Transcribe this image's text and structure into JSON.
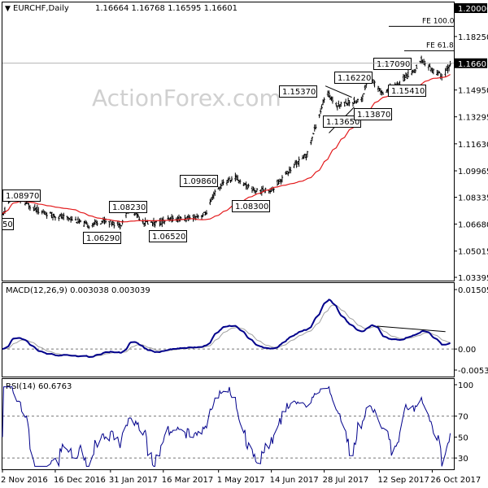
{
  "chart_data": [
    {
      "type": "candlestick",
      "title": "EURCHF,Daily",
      "ohlc_header": "1.16664 1.16768 1.16595 1.16601",
      "y_ticks": [
        "1.20000",
        "1.18250",
        "1.16601",
        "1.14950",
        "1.13295",
        "1.11630",
        "1.09965",
        "1.08335",
        "1.06680",
        "1.05015",
        "1.03395"
      ],
      "ylim": [
        1.03395,
        1.2
      ],
      "current_price": "1.16601",
      "x_ticks": [
        "2 Nov 2016",
        "16 Dec 2016",
        "31 Jan 2017",
        "16 Mar 2017",
        "1 May 2017",
        "14 Jun 2017",
        "28 Jul 2017",
        "12 Sep 2017",
        "26 Oct 2017"
      ],
      "annotations": [
        {
          "text": "1.08970",
          "x": "2016-11-10",
          "y": 1.0897
        },
        {
          "text": "1.08230",
          "x": "2017-02-16",
          "y": 1.0823
        },
        {
          "text": "1.06290",
          "x": "2017-01-12",
          "y": 1.0629
        },
        {
          "text": "1.06520",
          "x": "2017-03-10",
          "y": 1.0652
        },
        {
          "text": "1.09860",
          "x": "2017-05-05",
          "y": 1.0986
        },
        {
          "text": "1.08300",
          "x": "2017-06-02",
          "y": 1.083
        },
        {
          "text": "1.15370",
          "x": "2017-07-30",
          "y": 1.1537
        },
        {
          "text": "1.13650",
          "x": "2017-08-08",
          "y": 1.1365
        },
        {
          "text": "1.13870",
          "x": "2017-08-28",
          "y": 1.1387
        },
        {
          "text": "1.16220",
          "x": "2017-09-03",
          "y": 1.1622
        },
        {
          "text": "1.15410",
          "x": "2017-10-03",
          "y": 1.1541
        },
        {
          "text": "1.17090",
          "x": "2017-10-17",
          "y": 1.1709
        }
      ],
      "fib_levels": [
        {
          "text": "FE 100.0",
          "y": 1.1888
        },
        {
          "text": "FE 61.8",
          "y": 1.1737
        }
      ],
      "left_cut_label": "50",
      "watermark": "ActionForex.com",
      "moving_average_color": "#e31a1c",
      "price_color": "#000000"
    },
    {
      "type": "line",
      "title": "MACD(12,26,9) 0.003038 0.003039",
      "y_ticks": [
        "0.015052",
        "0.00",
        "-0.005321"
      ],
      "ylim": [
        -0.005321,
        0.015052
      ],
      "series_colors": {
        "macd": "#00008b",
        "signal": "#a0a0a0"
      }
    },
    {
      "type": "line",
      "title": "RSI(14) 60.6763",
      "y_ticks": [
        "100",
        "70",
        "50",
        "30"
      ],
      "ylim": [
        20,
        100
      ],
      "levels": [
        70,
        30
      ],
      "series_color": "#00008b"
    }
  ]
}
